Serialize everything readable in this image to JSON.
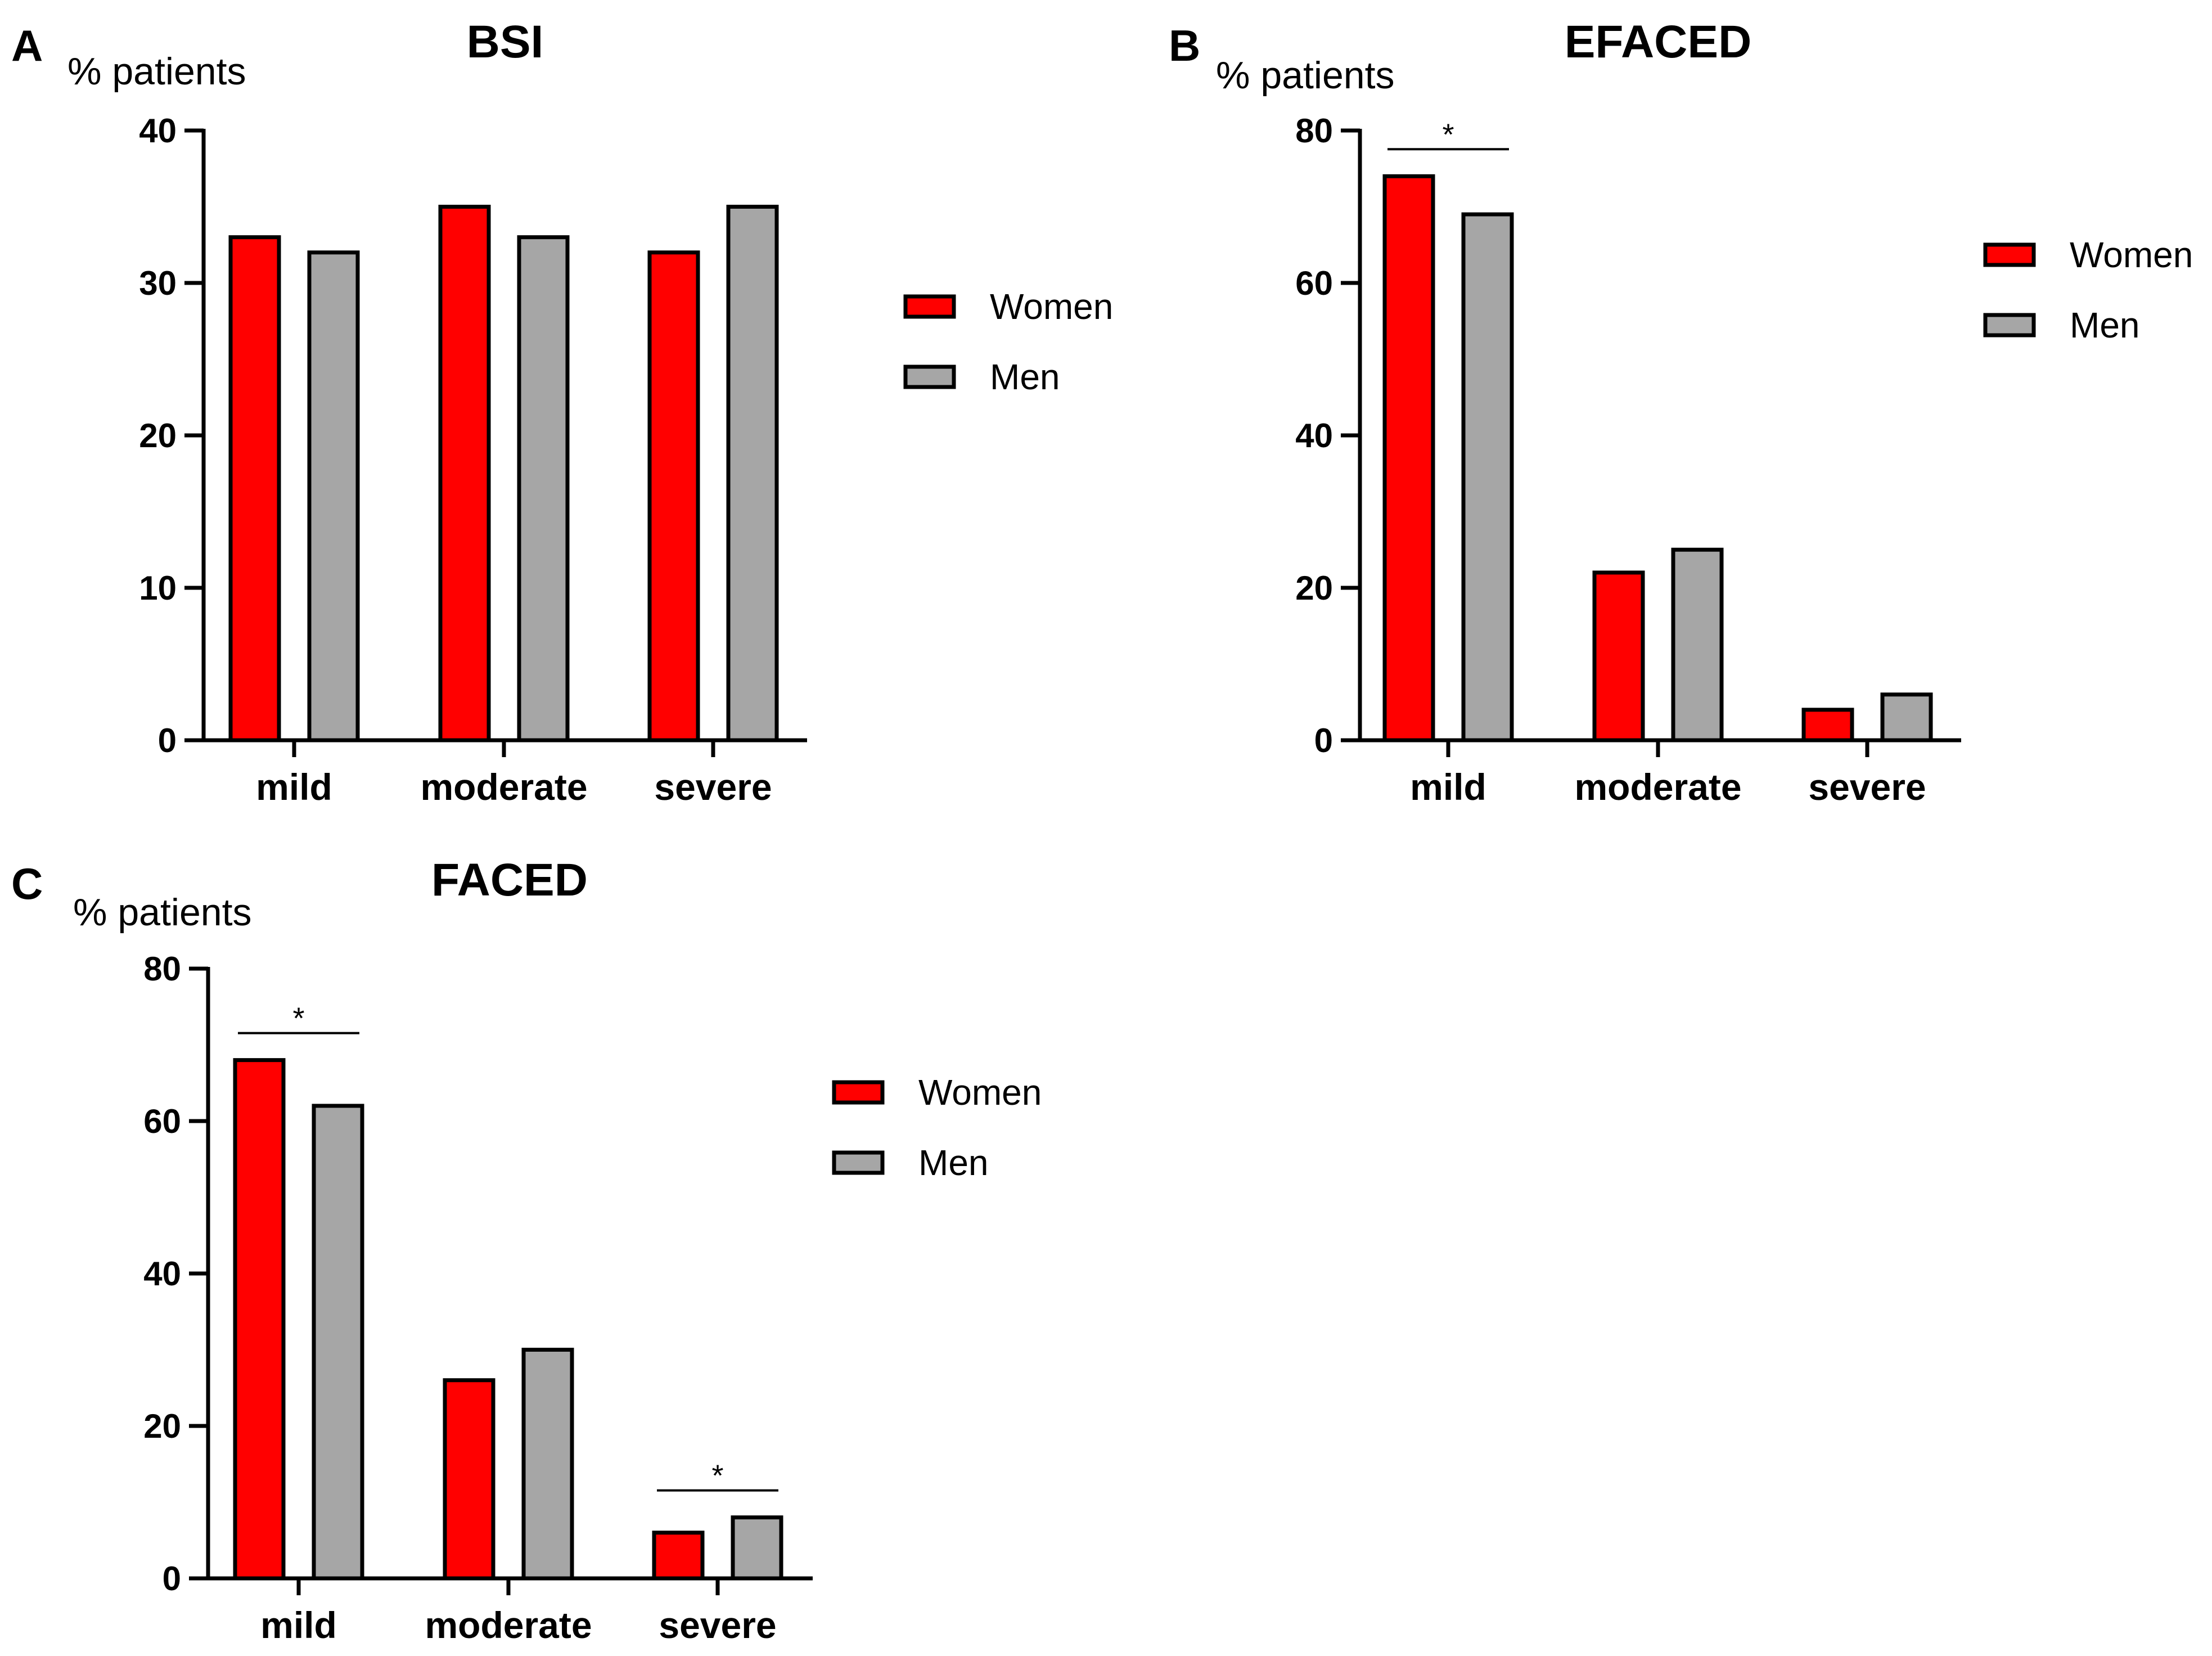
{
  "chart_data": [
    {
      "panel": "A",
      "type": "bar",
      "title": "BSI",
      "ylabel": "% patients",
      "xlabel": "",
      "categories": [
        "mild",
        "moderate",
        "severe"
      ],
      "ylim": [
        0,
        40
      ],
      "yticks": [
        0,
        10,
        20,
        30,
        40
      ],
      "series": [
        {
          "name": "Women",
          "color": "#ff0000",
          "values": [
            33,
            35,
            32
          ]
        },
        {
          "name": "Men",
          "color": "#a6a6a6",
          "values": [
            32,
            33,
            35
          ]
        }
      ],
      "legend": "right",
      "significance": []
    },
    {
      "panel": "B",
      "type": "bar",
      "title": "EFACED",
      "ylabel": "% patients",
      "xlabel": "",
      "categories": [
        "mild",
        "moderate",
        "severe"
      ],
      "ylim": [
        0,
        80
      ],
      "yticks": [
        0,
        20,
        40,
        60,
        80
      ],
      "series": [
        {
          "name": "Women",
          "color": "#ff0000",
          "values": [
            74,
            22,
            4
          ]
        },
        {
          "name": "Men",
          "color": "#a6a6a6",
          "values": [
            69,
            25,
            6
          ]
        }
      ],
      "legend": "right",
      "significance": [
        {
          "category": "mild",
          "label": "*"
        }
      ]
    },
    {
      "panel": "C",
      "type": "bar",
      "title": "FACED",
      "ylabel": "% patients",
      "xlabel": "",
      "categories": [
        "mild",
        "moderate",
        "severe"
      ],
      "ylim": [
        0,
        80
      ],
      "yticks": [
        0,
        20,
        40,
        60,
        80
      ],
      "series": [
        {
          "name": "Women",
          "color": "#ff0000",
          "values": [
            68,
            26,
            6
          ]
        },
        {
          "name": "Men",
          "color": "#a6a6a6",
          "values": [
            62,
            30,
            8
          ]
        }
      ],
      "legend": "right",
      "significance": [
        {
          "category": "mild",
          "label": "*"
        },
        {
          "category": "severe",
          "label": "*"
        }
      ]
    }
  ]
}
